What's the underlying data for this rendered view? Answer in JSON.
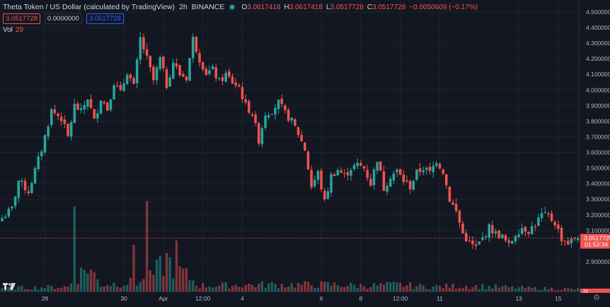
{
  "header": {
    "title": "Theta Token / US Dollar (calculated by TradingView)",
    "interval": "2h",
    "exchange": "BINANCE",
    "ohlc": {
      "o_label": "O",
      "o": "3.0617418",
      "h_label": "H",
      "h": "3.0617418",
      "l_label": "L",
      "l": "3.0517728",
      "c_label": "C",
      "c": "3.0517728",
      "change": "−0.0050609 (−0.17%)"
    }
  },
  "inputs": {
    "red": "3.0517728",
    "plain": "0.0000000",
    "blue": "3.0517728"
  },
  "volume": {
    "label": "Vol",
    "value": "29"
  },
  "price_tag": {
    "price": "3.0517728",
    "countdown": "01:53:34"
  },
  "volume_tag": {
    "value": "29"
  },
  "colors": {
    "bg": "#131722",
    "up": "#26a69a",
    "down": "#ef5350",
    "grid": "#1e222d",
    "text": "#b2b5be"
  },
  "chart_data": {
    "type": "candlestick",
    "title": "Theta Token / US Dollar (calculated by TradingView)",
    "interval": "2h",
    "ylim": [
      2.8,
      4.5
    ],
    "y_ticks": [
      {
        "value": 4.5,
        "label": "4.5000000"
      },
      {
        "value": 4.4,
        "label": "4.4000000"
      },
      {
        "value": 4.3,
        "label": "4.3000000"
      },
      {
        "value": 4.2,
        "label": "4.2000000"
      },
      {
        "value": 4.1,
        "label": "4.1000000"
      },
      {
        "value": 4.0,
        "label": "4.0000000"
      },
      {
        "value": 3.9,
        "label": "3.9000000"
      },
      {
        "value": 3.8,
        "label": "3.8000000"
      },
      {
        "value": 3.7,
        "label": "3.7000000"
      },
      {
        "value": 3.6,
        "label": "3.6000000"
      },
      {
        "value": 3.5,
        "label": "3.5000000"
      },
      {
        "value": 3.4,
        "label": "3.4000000"
      },
      {
        "value": 3.3,
        "label": "3.3000000"
      },
      {
        "value": 3.2,
        "label": "3.2000000"
      },
      {
        "value": 3.1,
        "label": "3.1000000"
      },
      {
        "value": 2.9,
        "label": "2.9000000"
      }
    ],
    "x_ticks": [
      {
        "index": 13,
        "label": "28"
      },
      {
        "index": 37,
        "label": "30"
      },
      {
        "index": 49,
        "label": "Apr"
      },
      {
        "index": 61,
        "label": "12:00"
      },
      {
        "index": 73,
        "label": "4"
      },
      {
        "index": 97,
        "label": "6"
      },
      {
        "index": 109,
        "label": "8"
      },
      {
        "index": 121,
        "label": "12:00"
      },
      {
        "index": 133,
        "label": "11"
      },
      {
        "index": 157,
        "label": "13"
      },
      {
        "index": 169,
        "label": "15"
      }
    ],
    "last_price": 3.0517728,
    "anchors": [
      [
        0,
        3.18
      ],
      [
        3,
        3.24
      ],
      [
        5,
        3.42
      ],
      [
        8,
        3.35
      ],
      [
        12,
        3.62
      ],
      [
        15,
        3.87
      ],
      [
        18,
        3.82
      ],
      [
        20,
        3.7
      ],
      [
        22,
        3.9
      ],
      [
        24,
        3.86
      ],
      [
        26,
        3.95
      ],
      [
        28,
        3.8
      ],
      [
        30,
        3.95
      ],
      [
        32,
        3.88
      ],
      [
        34,
        4.05
      ],
      [
        36,
        3.98
      ],
      [
        38,
        4.12
      ],
      [
        40,
        4.02
      ],
      [
        42,
        4.33
      ],
      [
        44,
        4.2
      ],
      [
        46,
        4.06
      ],
      [
        48,
        4.2
      ],
      [
        50,
        4.03
      ],
      [
        52,
        4.18
      ],
      [
        54,
        4.1
      ],
      [
        56,
        4.08
      ],
      [
        58,
        4.33
      ],
      [
        60,
        4.2
      ],
      [
        62,
        4.11
      ],
      [
        64,
        4.13
      ],
      [
        66,
        4.05
      ],
      [
        68,
        4.1
      ],
      [
        70,
        4.05
      ],
      [
        72,
        4.02
      ],
      [
        74,
        3.9
      ],
      [
        76,
        3.85
      ],
      [
        78,
        3.68
      ],
      [
        80,
        3.85
      ],
      [
        82,
        3.87
      ],
      [
        84,
        3.92
      ],
      [
        86,
        3.85
      ],
      [
        88,
        3.8
      ],
      [
        90,
        3.72
      ],
      [
        92,
        3.62
      ],
      [
        94,
        3.38
      ],
      [
        96,
        3.47
      ],
      [
        98,
        3.28
      ],
      [
        100,
        3.45
      ],
      [
        102,
        3.49
      ],
      [
        104,
        3.45
      ],
      [
        106,
        3.5
      ],
      [
        108,
        3.52
      ],
      [
        110,
        3.5
      ],
      [
        112,
        3.4
      ],
      [
        114,
        3.56
      ],
      [
        116,
        3.37
      ],
      [
        118,
        3.45
      ],
      [
        120,
        3.48
      ],
      [
        122,
        3.42
      ],
      [
        124,
        3.38
      ],
      [
        126,
        3.47
      ],
      [
        128,
        3.5
      ],
      [
        130,
        3.47
      ],
      [
        132,
        3.55
      ],
      [
        134,
        3.48
      ],
      [
        136,
        3.3
      ],
      [
        138,
        3.22
      ],
      [
        140,
        3.08
      ],
      [
        142,
        3.02
      ],
      [
        144,
        2.99
      ],
      [
        146,
        3.05
      ],
      [
        148,
        3.12
      ],
      [
        150,
        3.08
      ],
      [
        152,
        3.06
      ],
      [
        154,
        3.0
      ],
      [
        156,
        3.08
      ],
      [
        158,
        3.12
      ],
      [
        160,
        3.1
      ],
      [
        162,
        3.14
      ],
      [
        164,
        3.2
      ],
      [
        166,
        3.19
      ],
      [
        168,
        3.15
      ],
      [
        170,
        3.05
      ],
      [
        172,
        3.02
      ],
      [
        174,
        3.05
      ],
      [
        175,
        3.0517728
      ]
    ],
    "volume_profile": [
      [
        0,
        6
      ],
      [
        20,
        8
      ],
      [
        26,
        45
      ],
      [
        30,
        12
      ],
      [
        44,
        18
      ],
      [
        50,
        55
      ],
      [
        60,
        10
      ],
      [
        80,
        12
      ],
      [
        100,
        12
      ],
      [
        110,
        10
      ],
      [
        120,
        12
      ],
      [
        130,
        8
      ],
      [
        140,
        10
      ],
      [
        160,
        6
      ],
      [
        175,
        4
      ]
    ]
  }
}
